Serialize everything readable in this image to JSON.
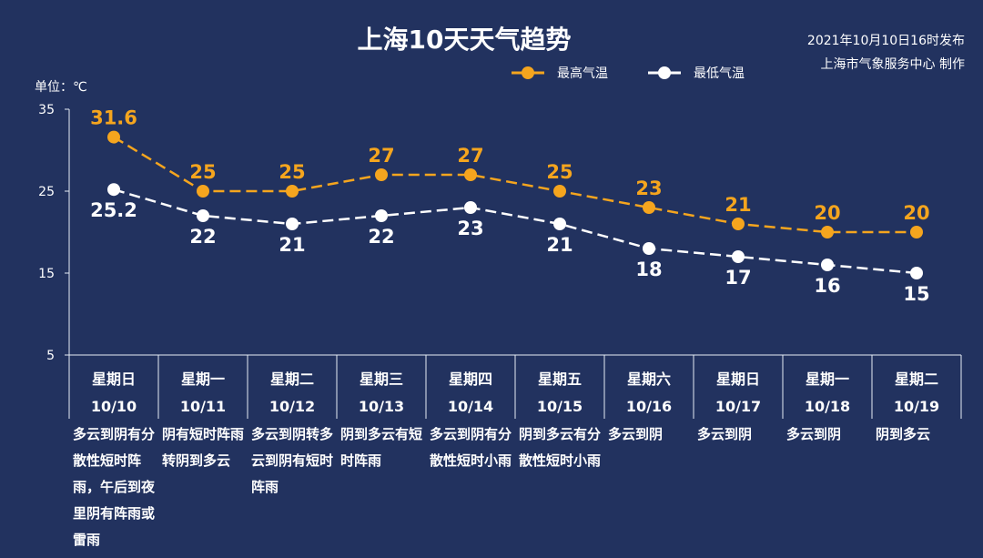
{
  "header": {
    "publish": "2021年10月10日16时发布",
    "issuer": "上海市气象服务中心 制作"
  },
  "chart_data": {
    "type": "line",
    "title": "上海10天天气趋势",
    "ylabel": "单位：℃",
    "ylim": [
      5,
      35
    ],
    "yticks": [
      5,
      15,
      25,
      35
    ],
    "grid": false,
    "legend_position": "top",
    "categories": [
      {
        "weekday": "星期日",
        "date": "10/10"
      },
      {
        "weekday": "星期一",
        "date": "10/11"
      },
      {
        "weekday": "星期二",
        "date": "10/12"
      },
      {
        "weekday": "星期三",
        "date": "10/13"
      },
      {
        "weekday": "星期四",
        "date": "10/14"
      },
      {
        "weekday": "星期五",
        "date": "10/15"
      },
      {
        "weekday": "星期六",
        "date": "10/16"
      },
      {
        "weekday": "星期日",
        "date": "10/17"
      },
      {
        "weekday": "星期一",
        "date": "10/18"
      },
      {
        "weekday": "星期二",
        "date": "10/19"
      }
    ],
    "series": [
      {
        "name": "最高气温",
        "color": "#f5a51e",
        "values": [
          31.6,
          25,
          25,
          27,
          27,
          25,
          23,
          21,
          20,
          20
        ]
      },
      {
        "name": "最低气温",
        "color": "#ffffff",
        "values": [
          25.2,
          22,
          21,
          22,
          23,
          21,
          18,
          17,
          16,
          15
        ]
      }
    ],
    "descriptions": [
      "多云到阴有分散性短时阵雨，午后到夜里阴有阵雨或雷雨",
      "阴有短时阵雨转阴到多云",
      "多云到阴转多云到阴有短时阵雨",
      "阴到多云有短时阵雨",
      "多云到阴有分散性短时小雨",
      "阴到多云有分散性短时小雨",
      "多云到阴",
      "多云到阴",
      "多云到阴",
      "阴到多云"
    ]
  }
}
